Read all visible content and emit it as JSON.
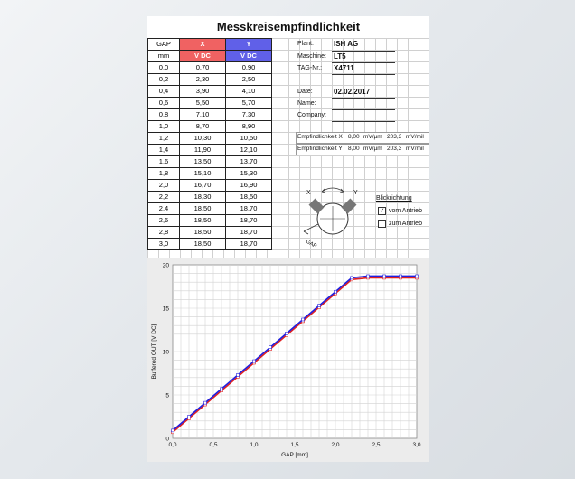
{
  "title": "Messkreisempfindlichkeit",
  "table": {
    "headers": [
      "GAP",
      "X",
      "Y"
    ],
    "units": [
      "mm",
      "V DC",
      "V DC"
    ],
    "rows": [
      [
        "0,0",
        "0,70",
        "0,90"
      ],
      [
        "0,2",
        "2,30",
        "2,50"
      ],
      [
        "0,4",
        "3,90",
        "4,10"
      ],
      [
        "0,6",
        "5,50",
        "5,70"
      ],
      [
        "0,8",
        "7,10",
        "7,30"
      ],
      [
        "1,0",
        "8,70",
        "8,90"
      ],
      [
        "1,2",
        "10,30",
        "10,50"
      ],
      [
        "1,4",
        "11,90",
        "12,10"
      ],
      [
        "1,6",
        "13,50",
        "13,70"
      ],
      [
        "1,8",
        "15,10",
        "15,30"
      ],
      [
        "2,0",
        "16,70",
        "16,90"
      ],
      [
        "2,2",
        "18,30",
        "18,50"
      ],
      [
        "2,4",
        "18,50",
        "18,70"
      ],
      [
        "2,6",
        "18,50",
        "18,70"
      ],
      [
        "2,8",
        "18,50",
        "18,70"
      ],
      [
        "3,0",
        "18,50",
        "18,70"
      ]
    ]
  },
  "info": {
    "plant_label": "Plant:",
    "plant_value": "ISH AG",
    "machine_label": "Maschine:",
    "machine_value": "LT5",
    "tag_label": "TAG-Nr.:",
    "tag_value": "X4711",
    "date_label": "Date:",
    "date_value": "02.02.2017",
    "name_label": "Name:",
    "name_value": "",
    "company_label": "Company:",
    "company_value": ""
  },
  "sensitivity": {
    "x_label": "Empfindlichkeit X",
    "x_value1": "8,00",
    "x_unit1": "mV/µm",
    "x_value2": "203,3",
    "x_unit2": "mV/mil",
    "y_label": "Empfindlichkeit Y",
    "y_value1": "8,00",
    "y_unit1": "mV/µm",
    "y_value2": "203,3",
    "y_unit2": "mV/mil"
  },
  "view": {
    "title": "Blickrichtung",
    "option1": "vom Antrieb",
    "option1_checked": true,
    "option2": "zum Antrieb",
    "option2_checked": false,
    "probe_x": "X",
    "probe_y": "Y",
    "gap_label": "GAP"
  },
  "colors": {
    "x_header": "#f06262",
    "y_header": "#6060e8",
    "x_line": "#e02020",
    "y_line": "#2020e0"
  },
  "chart_data": {
    "type": "line",
    "xlabel": "GAP  [mm]",
    "ylabel": "Buffered OUT  [V DC]",
    "xlim": [
      0,
      3
    ],
    "ylim": [
      0,
      20
    ],
    "xticks": [
      "0,0",
      "0,5",
      "1,0",
      "1,5",
      "2,0",
      "2,5",
      "3,0"
    ],
    "yticks": [
      "0",
      "5",
      "10",
      "15",
      "20"
    ],
    "grid": true,
    "x": [
      0.0,
      0.2,
      0.4,
      0.6,
      0.8,
      1.0,
      1.2,
      1.4,
      1.6,
      1.8,
      2.0,
      2.2,
      2.4,
      2.6,
      2.8,
      3.0
    ],
    "series": [
      {
        "color": "#e02020",
        "values": [
          0.7,
          2.3,
          3.9,
          5.5,
          7.1,
          8.7,
          10.3,
          11.9,
          13.5,
          15.1,
          16.7,
          18.3,
          18.5,
          18.5,
          18.5,
          18.5
        ]
      },
      {
        "color": "#2020e0",
        "values": [
          0.9,
          2.5,
          4.1,
          5.7,
          7.3,
          8.9,
          10.5,
          12.1,
          13.7,
          15.3,
          16.9,
          18.5,
          18.7,
          18.7,
          18.7,
          18.7
        ]
      }
    ]
  }
}
